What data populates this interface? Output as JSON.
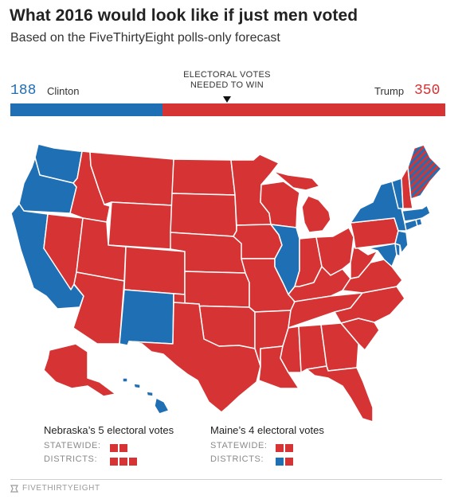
{
  "title": "What 2016 would look like if just men voted",
  "subtitle": "Based on the FiveThirtyEight polls-only forecast",
  "threshold_label_line1": "ELECTORAL VOTES",
  "threshold_label_line2": "NEEDED TO WIN",
  "clinton": {
    "name": "Clinton",
    "ev": "188",
    "ev_value": 188,
    "color": "#1f6fb4"
  },
  "trump": {
    "name": "Trump",
    "ev": "350",
    "ev_value": 350,
    "color": "#d63434"
  },
  "total_ev": 538,
  "needed_ev": 270,
  "legend": {
    "nebraska_title": "Nebraska’s 5 electoral votes",
    "maine_title": "Maine’s 4 electoral votes",
    "statewide_label": "STATEWIDE:",
    "districts_label": "DISTRICTS:",
    "nebraska_statewide": [
      "red",
      "red"
    ],
    "nebraska_districts": [
      "red",
      "red",
      "red"
    ],
    "maine_statewide": [
      "red",
      "red"
    ],
    "maine_districts": [
      "blue",
      "red"
    ]
  },
  "footer": "FIVETHIRTYEIGHT",
  "states": {
    "clinton": [
      "WA",
      "OR",
      "CA",
      "NM",
      "IL",
      "HI",
      "VT",
      "NY",
      "MA",
      "RI",
      "CT",
      "NJ",
      "DE",
      "MD",
      "DC"
    ],
    "trump": [
      "ID",
      "MT",
      "WY",
      "NV",
      "UT",
      "AZ",
      "CO",
      "ND",
      "SD",
      "NE",
      "KS",
      "OK",
      "TX",
      "MN",
      "IA",
      "MO",
      "AR",
      "LA",
      "WI",
      "MI",
      "IN",
      "OH",
      "KY",
      "TN",
      "MS",
      "AL",
      "GA",
      "FL",
      "SC",
      "NC",
      "VA",
      "WV",
      "PA",
      "NH",
      "AK"
    ],
    "split": [
      "ME"
    ]
  }
}
